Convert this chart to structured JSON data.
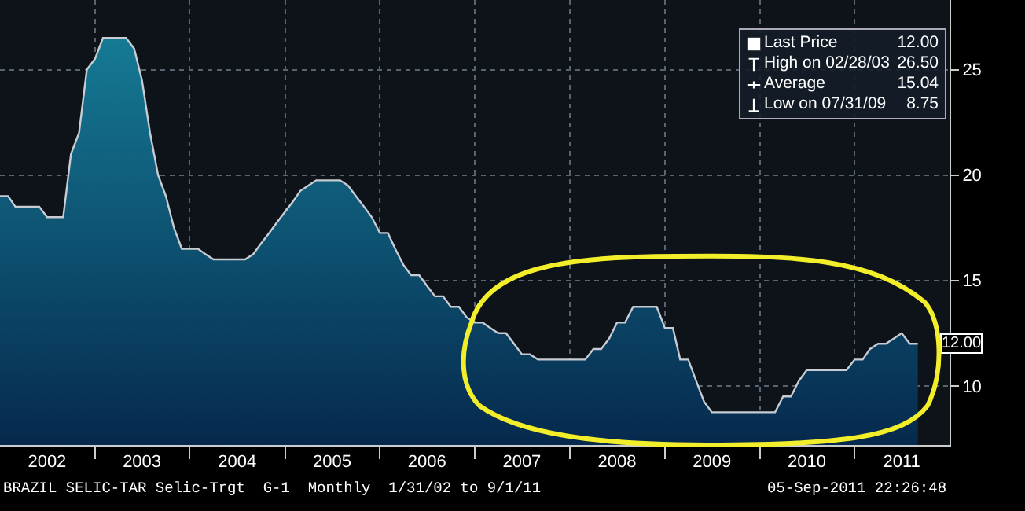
{
  "chart_data": {
    "type": "area",
    "x": [
      "2002-01",
      "2002-02",
      "2002-03",
      "2002-04",
      "2002-05",
      "2002-06",
      "2002-07",
      "2002-08",
      "2002-09",
      "2002-10",
      "2002-11",
      "2002-12",
      "2003-01",
      "2003-02",
      "2003-03",
      "2003-04",
      "2003-05",
      "2003-06",
      "2003-07",
      "2003-08",
      "2003-09",
      "2003-10",
      "2003-11",
      "2003-12",
      "2004-01",
      "2004-02",
      "2004-03",
      "2004-04",
      "2004-05",
      "2004-06",
      "2004-07",
      "2004-08",
      "2004-09",
      "2004-10",
      "2004-11",
      "2004-12",
      "2005-01",
      "2005-02",
      "2005-03",
      "2005-04",
      "2005-05",
      "2005-06",
      "2005-07",
      "2005-08",
      "2005-09",
      "2005-10",
      "2005-11",
      "2005-12",
      "2006-01",
      "2006-02",
      "2006-03",
      "2006-04",
      "2006-05",
      "2006-06",
      "2006-07",
      "2006-08",
      "2006-09",
      "2006-10",
      "2006-11",
      "2006-12",
      "2007-01",
      "2007-02",
      "2007-03",
      "2007-04",
      "2007-05",
      "2007-06",
      "2007-07",
      "2007-08",
      "2007-09",
      "2007-10",
      "2007-11",
      "2007-12",
      "2008-01",
      "2008-02",
      "2008-03",
      "2008-04",
      "2008-05",
      "2008-06",
      "2008-07",
      "2008-08",
      "2008-09",
      "2008-10",
      "2008-11",
      "2008-12",
      "2009-01",
      "2009-02",
      "2009-03",
      "2009-04",
      "2009-05",
      "2009-06",
      "2009-07",
      "2009-08",
      "2009-09",
      "2009-10",
      "2009-11",
      "2009-12",
      "2010-01",
      "2010-02",
      "2010-03",
      "2010-04",
      "2010-05",
      "2010-06",
      "2010-07",
      "2010-08",
      "2010-09",
      "2010-10",
      "2010-11",
      "2010-12",
      "2011-01",
      "2011-02",
      "2011-03",
      "2011-04",
      "2011-05",
      "2011-06",
      "2011-07",
      "2011-08",
      "2011-09"
    ],
    "series": [
      {
        "color": "#157a94",
        "values": [
          19,
          19,
          18.5,
          18.5,
          18.5,
          18.5,
          18,
          18,
          18,
          21,
          22,
          25,
          25.5,
          26.5,
          26.5,
          26.5,
          26.5,
          26,
          24.5,
          22,
          20,
          19,
          17.5,
          16.5,
          16.5,
          16.5,
          16.25,
          16,
          16,
          16,
          16,
          16,
          16.25,
          16.75,
          17.25,
          17.75,
          18.25,
          18.75,
          19.25,
          19.5,
          19.75,
          19.75,
          19.75,
          19.75,
          19.5,
          19,
          18.5,
          18,
          17.25,
          17.25,
          16.5,
          15.75,
          15.25,
          15.25,
          14.75,
          14.25,
          14.25,
          13.75,
          13.75,
          13.25,
          13,
          13,
          12.75,
          12.5,
          12.5,
          12,
          11.5,
          11.5,
          11.25,
          11.25,
          11.25,
          11.25,
          11.25,
          11.25,
          11.25,
          11.75,
          11.75,
          12.25,
          13,
          13,
          13.75,
          13.75,
          13.75,
          13.75,
          12.75,
          12.75,
          11.25,
          11.25,
          10.25,
          9.25,
          8.75,
          8.75,
          8.75,
          8.75,
          8.75,
          8.75,
          8.75,
          8.75,
          8.75,
          9.5,
          9.5,
          10.25,
          10.75,
          10.75,
          10.75,
          10.75,
          10.75,
          10.75,
          11.25,
          11.25,
          11.75,
          12,
          12,
          12.25,
          12.5,
          12,
          12
        ]
      }
    ],
    "xlim": [
      "2002-01-01",
      "2012-01-01"
    ],
    "xticks": [
      {
        "value": "2002-07-01",
        "label": "2002"
      },
      {
        "value": "2003-01-01",
        "label": null
      },
      {
        "value": "2003-07-01",
        "label": "2003"
      },
      {
        "value": "2004-01-01",
        "label": null
      },
      {
        "value": "2004-07-01",
        "label": "2004"
      },
      {
        "value": "2005-01-01",
        "label": null
      },
      {
        "value": "2005-07-01",
        "label": "2005"
      },
      {
        "value": "2006-01-01",
        "label": null
      },
      {
        "value": "2006-07-01",
        "label": "2006"
      },
      {
        "value": "2007-01-01",
        "label": null
      },
      {
        "value": "2007-07-01",
        "label": "2007"
      },
      {
        "value": "2008-01-01",
        "label": null
      },
      {
        "value": "2008-07-01",
        "label": "2008"
      },
      {
        "value": "2009-01-01",
        "label": null
      },
      {
        "value": "2009-07-01",
        "label": "2009"
      },
      {
        "value": "2010-01-01",
        "label": null
      },
      {
        "value": "2010-07-01",
        "label": "2010"
      },
      {
        "value": "2011-01-01",
        "label": null
      },
      {
        "value": "2011-07-01",
        "label": "2011"
      }
    ],
    "ylim": [
      7.2,
      28.3
    ],
    "yticks": [
      10,
      15,
      20,
      25
    ],
    "grid": true,
    "annotations": [
      "Last Price",
      "12.00",
      "High on 02/28/03",
      "26.50",
      "Average",
      "15.04",
      "Low on 07/31/09",
      "8.75",
      {
        "text": "12.00",
        "x": "2011-09",
        "y": 12
      },
      "BRAZIL SELIC-TAR Selic-Trgt  G-1  Monthly  1/31/02 to 9/1/11",
      "05-Sep-2011 22:26:48"
    ]
  }
}
